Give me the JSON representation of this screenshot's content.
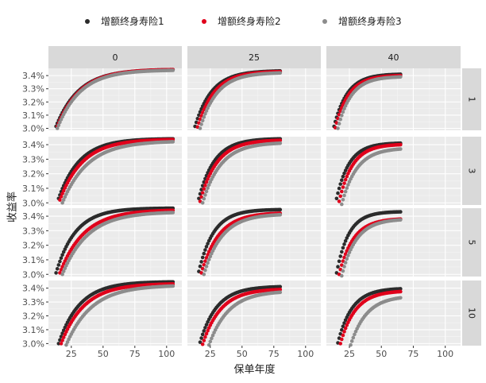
{
  "chart_data": {
    "type": "scatter",
    "xlabel": "保单年度",
    "ylabel": "收益率",
    "x_ticks": [
      25,
      50,
      75,
      100
    ],
    "x_range": [
      7,
      112
    ],
    "y_ticks": [
      0.03,
      0.031,
      0.032,
      0.033,
      0.034
    ],
    "y_tick_labels": [
      "3.0%",
      "3.1%",
      "3.2%",
      "3.3%",
      "3.4%"
    ],
    "y_range": [
      0.02985,
      0.03455
    ],
    "legend_position": "top",
    "grid": true,
    "panel_background": "#ebebeb",
    "strip_background": "#d9d9d9",
    "facet_cols": [
      "0",
      "25",
      "40"
    ],
    "facet_rows": [
      "1",
      "3",
      "5",
      "10"
    ],
    "series": [
      {
        "name": "增额终身寿险1",
        "color": "#2b2b2b"
      },
      {
        "name": "增额终身寿险2",
        "color": "#e0001b"
      },
      {
        "name": "增额终身寿险3",
        "color": "#8c8c8c"
      }
    ],
    "panels": [
      {
        "row": "1",
        "col": "0",
        "curves": [
          {
            "series": 0,
            "x_start": 13,
            "x_end": 105,
            "y_start": 0.03015,
            "y_end": 0.03445,
            "k": 0.055
          },
          {
            "series": 1,
            "x_start": 14,
            "x_end": 105,
            "y_start": 0.03015,
            "y_end": 0.03445,
            "k": 0.055
          },
          {
            "series": 2,
            "x_start": 14,
            "x_end": 105,
            "y_start": 0.03,
            "y_end": 0.0344,
            "k": 0.055
          }
        ]
      },
      {
        "row": "1",
        "col": "25",
        "curves": [
          {
            "series": 0,
            "x_start": 13,
            "x_end": 80,
            "y_start": 0.03015,
            "y_end": 0.03435,
            "k": 0.075
          },
          {
            "series": 1,
            "x_start": 15,
            "x_end": 80,
            "y_start": 0.0301,
            "y_end": 0.0343,
            "k": 0.075
          },
          {
            "series": 2,
            "x_start": 17,
            "x_end": 80,
            "y_start": 0.03,
            "y_end": 0.0342,
            "k": 0.075
          }
        ]
      },
      {
        "row": "1",
        "col": "40",
        "curves": [
          {
            "series": 0,
            "x_start": 13,
            "x_end": 65,
            "y_start": 0.03015,
            "y_end": 0.0341,
            "k": 0.095
          },
          {
            "series": 1,
            "x_start": 14,
            "x_end": 65,
            "y_start": 0.03005,
            "y_end": 0.034,
            "k": 0.095
          },
          {
            "series": 2,
            "x_start": 16,
            "x_end": 65,
            "y_start": 0.03,
            "y_end": 0.0339,
            "k": 0.095
          }
        ]
      },
      {
        "row": "3",
        "col": "0",
        "curves": [
          {
            "series": 0,
            "x_start": 15,
            "x_end": 105,
            "y_start": 0.0303,
            "y_end": 0.0344,
            "k": 0.06
          },
          {
            "series": 1,
            "x_start": 16,
            "x_end": 105,
            "y_start": 0.0302,
            "y_end": 0.03435,
            "k": 0.055
          },
          {
            "series": 2,
            "x_start": 18,
            "x_end": 105,
            "y_start": 0.03,
            "y_end": 0.0342,
            "k": 0.05
          }
        ]
      },
      {
        "row": "3",
        "col": "25",
        "curves": [
          {
            "series": 0,
            "x_start": 16,
            "x_end": 80,
            "y_start": 0.0303,
            "y_end": 0.0344,
            "k": 0.08
          },
          {
            "series": 1,
            "x_start": 17,
            "x_end": 80,
            "y_start": 0.0301,
            "y_end": 0.0343,
            "k": 0.075
          },
          {
            "series": 2,
            "x_start": 19,
            "x_end": 80,
            "y_start": 0.03,
            "y_end": 0.0341,
            "k": 0.07
          }
        ]
      },
      {
        "row": "3",
        "col": "40",
        "curves": [
          {
            "series": 0,
            "x_start": 15,
            "x_end": 65,
            "y_start": 0.0303,
            "y_end": 0.0341,
            "k": 0.1
          },
          {
            "series": 1,
            "x_start": 17,
            "x_end": 65,
            "y_start": 0.0301,
            "y_end": 0.034,
            "k": 0.095
          },
          {
            "series": 2,
            "x_start": 19,
            "x_end": 65,
            "y_start": 0.0299,
            "y_end": 0.0337,
            "k": 0.085
          }
        ]
      },
      {
        "row": "5",
        "col": "0",
        "curves": [
          {
            "series": 0,
            "x_start": 13,
            "x_end": 105,
            "y_start": 0.0301,
            "y_end": 0.03455,
            "k": 0.065
          },
          {
            "series": 1,
            "x_start": 16,
            "x_end": 105,
            "y_start": 0.0301,
            "y_end": 0.0344,
            "k": 0.052
          },
          {
            "series": 2,
            "x_start": 18,
            "x_end": 105,
            "y_start": 0.03,
            "y_end": 0.03425,
            "k": 0.05
          }
        ]
      },
      {
        "row": "5",
        "col": "25",
        "curves": [
          {
            "series": 0,
            "x_start": 16,
            "x_end": 80,
            "y_start": 0.0302,
            "y_end": 0.03445,
            "k": 0.085
          },
          {
            "series": 1,
            "x_start": 18,
            "x_end": 80,
            "y_start": 0.0301,
            "y_end": 0.0342,
            "k": 0.072
          },
          {
            "series": 2,
            "x_start": 20,
            "x_end": 80,
            "y_start": 0.03,
            "y_end": 0.0341,
            "k": 0.07
          }
        ]
      },
      {
        "row": "5",
        "col": "40",
        "curves": [
          {
            "series": 0,
            "x_start": 15,
            "x_end": 65,
            "y_start": 0.0301,
            "y_end": 0.0343,
            "k": 0.105
          },
          {
            "series": 1,
            "x_start": 17,
            "x_end": 65,
            "y_start": 0.03,
            "y_end": 0.0338,
            "k": 0.09
          },
          {
            "series": 2,
            "x_start": 19,
            "x_end": 65,
            "y_start": 0.0299,
            "y_end": 0.03375,
            "k": 0.088
          }
        ]
      },
      {
        "row": "10",
        "col": "0",
        "curves": [
          {
            "series": 0,
            "x_start": 15,
            "x_end": 105,
            "y_start": 0.03,
            "y_end": 0.03445,
            "k": 0.06
          },
          {
            "series": 1,
            "x_start": 17,
            "x_end": 105,
            "y_start": 0.03,
            "y_end": 0.0343,
            "k": 0.055
          },
          {
            "series": 2,
            "x_start": 21,
            "x_end": 105,
            "y_start": 0.0299,
            "y_end": 0.03415,
            "k": 0.05
          }
        ]
      },
      {
        "row": "10",
        "col": "25",
        "curves": [
          {
            "series": 0,
            "x_start": 17,
            "x_end": 80,
            "y_start": 0.0301,
            "y_end": 0.0341,
            "k": 0.075
          },
          {
            "series": 1,
            "x_start": 19,
            "x_end": 80,
            "y_start": 0.02995,
            "y_end": 0.0339,
            "k": 0.07
          },
          {
            "series": 2,
            "x_start": 24,
            "x_end": 80,
            "y_start": 0.0299,
            "y_end": 0.0337,
            "k": 0.065
          }
        ]
      },
      {
        "row": "10",
        "col": "40",
        "curves": [
          {
            "series": 0,
            "x_start": 16,
            "x_end": 65,
            "y_start": 0.03005,
            "y_end": 0.03395,
            "k": 0.09
          },
          {
            "series": 1,
            "x_start": 18,
            "x_end": 65,
            "y_start": 0.03,
            "y_end": 0.03375,
            "k": 0.085
          },
          {
            "series": 2,
            "x_start": 26,
            "x_end": 65,
            "y_start": 0.0299,
            "y_end": 0.0333,
            "k": 0.08
          }
        ]
      }
    ]
  }
}
